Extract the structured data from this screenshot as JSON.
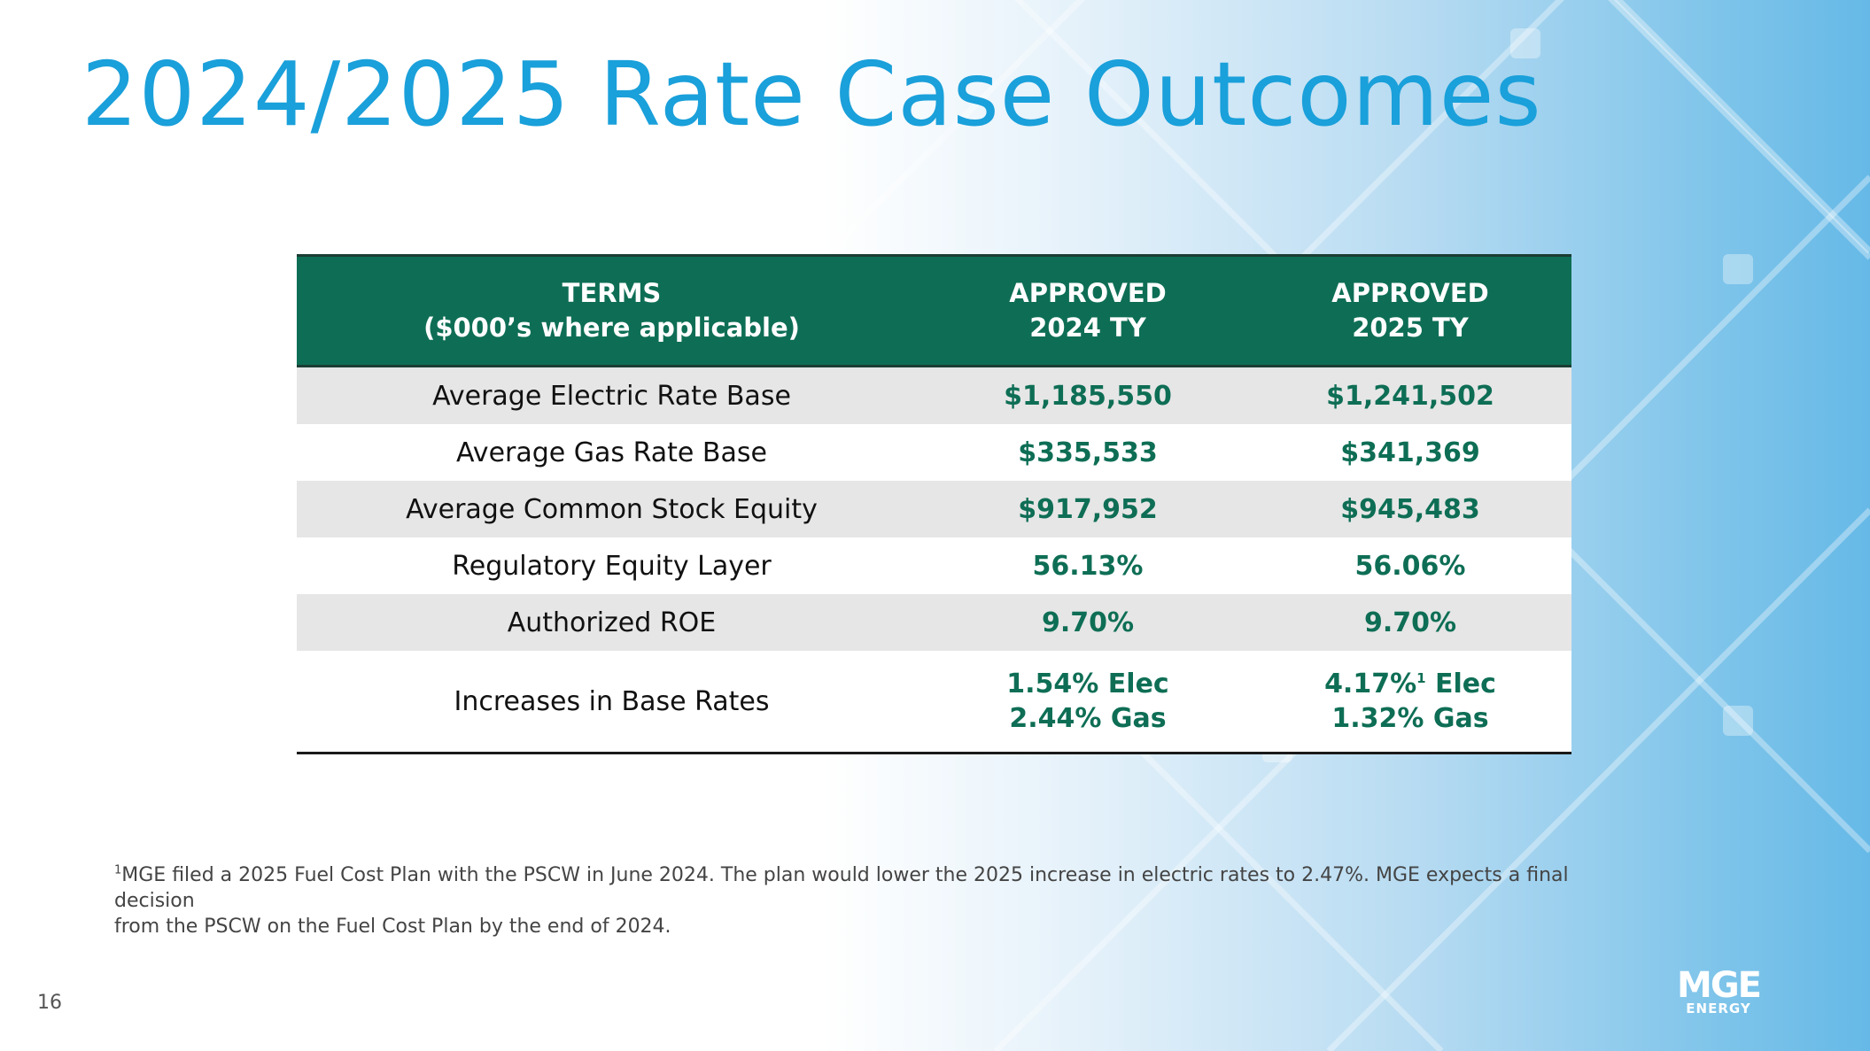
{
  "slide": {
    "title": "2024/2025 Rate Case Outcomes",
    "page_number": "16"
  },
  "table": {
    "headers": [
      {
        "line1": "TERMS",
        "line2": "($000’s where applicable)"
      },
      {
        "line1": "APPROVED",
        "line2": "2024 TY"
      },
      {
        "line1": "APPROVED",
        "line2": "2025 TY"
      }
    ],
    "rows": [
      {
        "term": "Average Electric Rate Base",
        "v2024": "$1,185,550",
        "v2025": "$1,241,502"
      },
      {
        "term": "Average Gas Rate Base",
        "v2024": "$335,533",
        "v2025": "$341,369"
      },
      {
        "term": "Average Common Stock Equity",
        "v2024": "$917,952",
        "v2025": "$945,483"
      },
      {
        "term": "Regulatory Equity Layer",
        "v2024": "56.13%",
        "v2025": "56.06%"
      },
      {
        "term": "Authorized ROE",
        "v2024": "9.70%",
        "v2025": "9.70%"
      },
      {
        "term": "Increases in Base Rates",
        "v2024_line1": "1.54% Elec",
        "v2024_line2": "2.44% Gas",
        "v2025_line1_value": "4.17%",
        "v2025_line1_mark": "1",
        "v2025_line1_suffix": " Elec",
        "v2025_line2": "1.32% Gas"
      }
    ]
  },
  "footnote": {
    "mark": "1",
    "line1": "MGE filed a 2025 Fuel Cost Plan with the PSCW in June 2024. The plan would lower the 2025 increase in electric rates to 2.47%. MGE expects a final decision",
    "line2": "from the PSCW on the Fuel Cost Plan by the end of 2024."
  },
  "logo": {
    "name": "mge-energy-logo",
    "main": "MGE",
    "sub": "ENERGY"
  },
  "colors": {
    "title": "#1aa0da",
    "header_bg": "#0e6e55",
    "value_text": "#0e6e55",
    "row_alt": "#e6e6e6",
    "background_right": "#66b9e7"
  }
}
